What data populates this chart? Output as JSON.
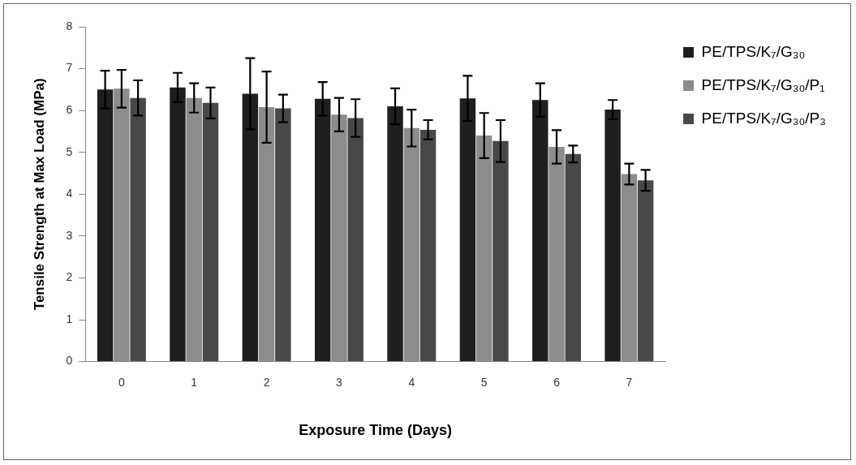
{
  "chart_data": {
    "type": "bar",
    "xlabel": "Exposure Time (Days)",
    "ylabel": "Tensile Strength at Max Load (MPa)",
    "categories": [
      "0",
      "1",
      "2",
      "3",
      "4",
      "5",
      "6",
      "7"
    ],
    "series": [
      {
        "name": "PE/TPS/K₇/G₃₀",
        "color": "#1f1f1f",
        "values": [
          6.5,
          6.55,
          6.4,
          6.28,
          6.1,
          6.29,
          6.25,
          6.02
        ],
        "errors": [
          0.45,
          0.35,
          0.85,
          0.4,
          0.43,
          0.54,
          0.4,
          0.23
        ]
      },
      {
        "name": "PE/TPS/K₇/G₃₀/P₁",
        "color": "#8c8c8c",
        "values": [
          6.52,
          6.3,
          6.08,
          5.9,
          5.58,
          5.4,
          5.13,
          4.48
        ],
        "errors": [
          0.45,
          0.35,
          0.85,
          0.4,
          0.44,
          0.54,
          0.4,
          0.25
        ]
      },
      {
        "name": "PE/TPS/K₇/G₃₀/P₃",
        "color": "#484848",
        "values": [
          6.3,
          6.18,
          6.05,
          5.82,
          5.54,
          5.27,
          4.96,
          4.33
        ],
        "errors": [
          0.42,
          0.37,
          0.33,
          0.45,
          0.23,
          0.5,
          0.2,
          0.25
        ]
      }
    ],
    "ylim": [
      0,
      8
    ],
    "yticks": [
      0,
      1,
      2,
      3,
      4,
      5,
      6,
      7,
      8
    ],
    "grid": false,
    "legend": "top right"
  }
}
